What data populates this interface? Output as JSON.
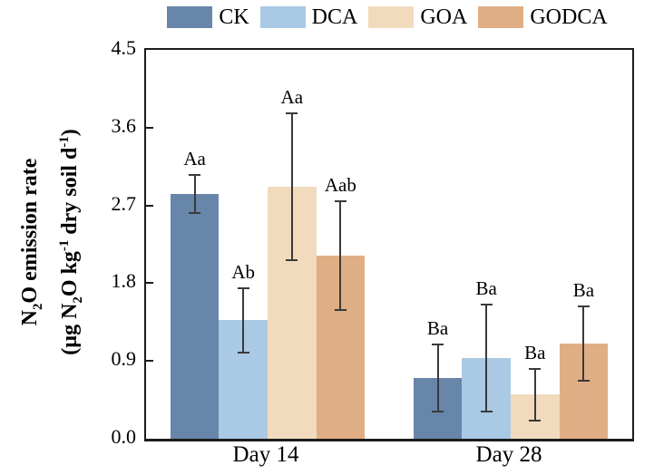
{
  "chart_data": {
    "type": "bar",
    "title": "",
    "categories": [
      "Day 14",
      "Day 28"
    ],
    "series": [
      {
        "name": "CK",
        "color": "#6886aa",
        "values": [
          2.83,
          0.7
        ],
        "errors": [
          0.22,
          0.39
        ],
        "sig_labels": [
          "Aa",
          "Ba"
        ]
      },
      {
        "name": "DCA",
        "color": "#aac9e4",
        "values": [
          1.37,
          0.93
        ],
        "errors": [
          0.37,
          0.62
        ],
        "sig_labels": [
          "Ab",
          "Ba"
        ]
      },
      {
        "name": "GOA",
        "color": "#f2dabd",
        "values": [
          2.92,
          0.51
        ],
        "errors": [
          0.85,
          0.3
        ],
        "sig_labels": [
          "Aa",
          "Ba"
        ]
      },
      {
        "name": "GODCA",
        "color": "#e0ae85",
        "values": [
          2.12,
          1.1
        ],
        "errors": [
          0.63,
          0.43
        ],
        "sig_labels": [
          "Aab",
          "Ba"
        ]
      }
    ],
    "ylabel": "N₂O emission rate (µg N₂O kg⁻¹ dry soil d⁻¹)",
    "ylabel_lines": [
      [
        {
          "t": "N"
        },
        {
          "t": "2",
          "sub": true
        },
        {
          "t": "O emission rate"
        }
      ],
      [
        {
          "t": "(µg N"
        },
        {
          "t": "2",
          "sub": true
        },
        {
          "t": "O kg"
        },
        {
          "t": "-1",
          "sup": true
        },
        {
          "t": " dry soil d"
        },
        {
          "t": "-1",
          "sup": true
        },
        {
          "t": ")"
        }
      ]
    ],
    "xlabel": "",
    "yticks": [
      "0.0",
      "0.9",
      "1.8",
      "2.7",
      "3.6",
      "4.5"
    ],
    "ylim": [
      0,
      4.5
    ],
    "legend_position": "top-center",
    "grid": false,
    "error_bar_color": "#3a3a3a",
    "axis_color": "#1c1c1c"
  }
}
